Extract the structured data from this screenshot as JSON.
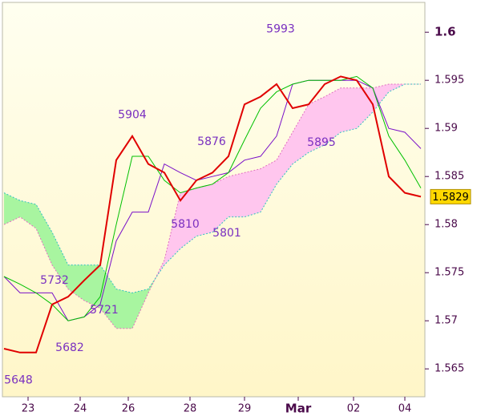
{
  "chart_data": {
    "type": "line",
    "x": [
      2,
      22,
      42,
      62,
      82,
      102,
      122,
      142,
      162,
      182,
      202,
      222,
      242,
      262,
      282,
      302,
      322,
      342,
      362,
      382,
      402,
      422,
      442,
      462,
      482,
      502,
      522
    ],
    "xlim": [
      0,
      527
    ],
    "xticks": [
      {
        "value": 32,
        "label": "23"
      },
      {
        "value": 97,
        "label": "24"
      },
      {
        "value": 157,
        "label": "26"
      },
      {
        "value": 234,
        "label": "28"
      },
      {
        "value": 302,
        "label": "29"
      },
      {
        "value": 369,
        "label": "Mar"
      },
      {
        "value": 438,
        "label": "02"
      },
      {
        "value": 502,
        "label": "04"
      }
    ],
    "ylim": [
      1.5621,
      1.6031
    ],
    "yticks": [
      1.565,
      1.57,
      1.575,
      1.58,
      1.585,
      1.59,
      1.595,
      1.6
    ],
    "cloud_colors": [
      "#a8f5a0",
      "#ffc6ee"
    ],
    "series": [
      {
        "color": "#e00000",
        "width": 2,
        "values": [
          1.5671,
          1.5667,
          1.5667,
          1.5717,
          1.5725,
          1.5742,
          1.5758,
          1.5867,
          1.5892,
          1.5863,
          1.5854,
          1.5825,
          1.5846,
          1.5854,
          1.5871,
          1.5925,
          1.5933,
          1.5946,
          1.5921,
          1.5925,
          1.5946,
          1.5954,
          1.595,
          1.5925,
          1.585,
          1.5833,
          1.5829
        ]
      },
      {
        "color": "#00c000",
        "width": 1,
        "values": [
          1.5746,
          1.5738,
          1.5729,
          1.5717,
          1.57,
          1.5704,
          1.5725,
          1.58,
          1.5871,
          1.5871,
          1.5846,
          1.5833,
          1.5838,
          1.5842,
          1.5854,
          1.5888,
          1.5921,
          1.5938,
          1.5946,
          1.595,
          1.595,
          1.595,
          1.5954,
          1.5942,
          1.5892,
          1.5867,
          1.5838
        ]
      },
      {
        "color": "#7a10c8",
        "width": 1,
        "values": [
          1.5746,
          1.5729,
          1.5729,
          1.5729,
          1.57,
          1.5704,
          1.5717,
          1.5783,
          1.5813,
          1.5813,
          1.5863,
          1.5854,
          1.5846,
          1.585,
          1.5854,
          1.5867,
          1.5871,
          1.5892,
          1.5946,
          1.595,
          1.595,
          1.595,
          1.595,
          1.5942,
          1.59,
          1.5896,
          1.5879
        ]
      },
      {
        "color": "#30c0c0",
        "width": 1,
        "dashed": true,
        "cloud": true,
        "values": [
          1.5833,
          1.5825,
          1.5821,
          1.5792,
          1.5758,
          1.5758,
          1.5758,
          1.5733,
          1.5729,
          1.5733,
          1.5758,
          1.5775,
          1.5788,
          1.5792,
          1.5808,
          1.5808,
          1.5813,
          1.5842,
          1.5863,
          1.5875,
          1.5883,
          1.5896,
          1.59,
          1.5917,
          1.5938,
          1.5946,
          1.5946
        ]
      },
      {
        "color": "#e070c0",
        "width": 1,
        "dashed": true,
        "cloud": true,
        "values": [
          1.58,
          1.5808,
          1.5796,
          1.5758,
          1.5733,
          1.5721,
          1.5713,
          1.5692,
          1.5692,
          1.5729,
          1.5763,
          1.5833,
          1.5838,
          1.5842,
          1.585,
          1.5854,
          1.5858,
          1.5867,
          1.5896,
          1.5925,
          1.5933,
          1.5942,
          1.5942,
          1.5942,
          1.5946,
          1.5946,
          1.5946
        ]
      }
    ],
    "annotations": [
      {
        "label": "5993",
        "value": 1.5993,
        "x": 347,
        "position": "above"
      },
      {
        "label": "5904",
        "value": 1.5904,
        "x": 162,
        "position": "above"
      },
      {
        "label": "5876",
        "value": 1.5876,
        "x": 261,
        "position": "above"
      },
      {
        "label": "5895",
        "value": 1.5895,
        "x": 398,
        "position": "below"
      },
      {
        "label": "5810",
        "value": 1.581,
        "x": 228,
        "position": "below"
      },
      {
        "label": "5801",
        "value": 1.5801,
        "x": 280,
        "position": "below"
      },
      {
        "label": "5732",
        "value": 1.5732,
        "x": 65,
        "position": "above"
      },
      {
        "label": "5721",
        "value": 1.5721,
        "x": 127,
        "position": "below"
      },
      {
        "label": "5682",
        "value": 1.5682,
        "x": 84,
        "position": "below"
      },
      {
        "label": "5648",
        "value": 1.5648,
        "x": 20,
        "position": "below"
      }
    ],
    "last_price": {
      "value": 1.5829,
      "label": "1.5829",
      "color": "#ffd800"
    }
  }
}
